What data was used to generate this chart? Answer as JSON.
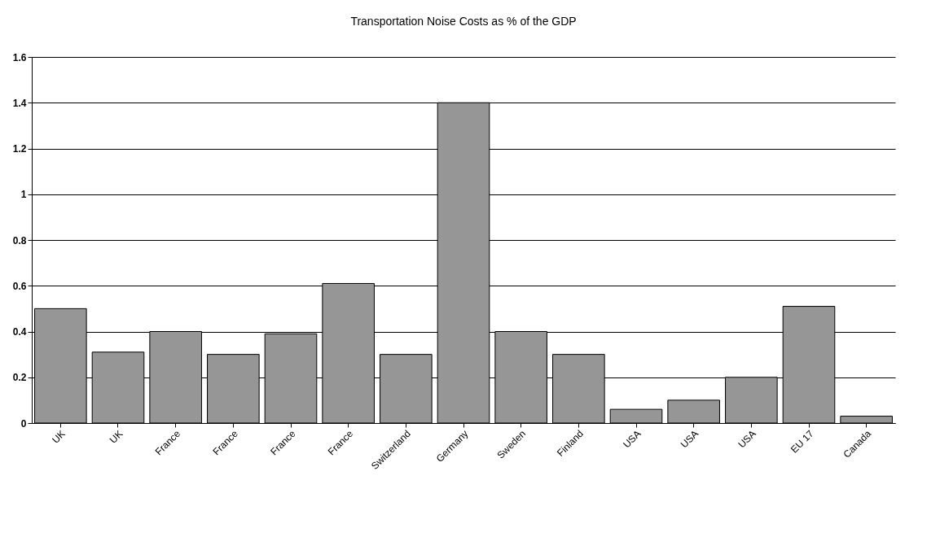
{
  "chart_data": {
    "type": "bar",
    "title": "Transportation Noise Costs as % of the GDP",
    "categories": [
      "UK",
      "UK",
      "France",
      "France",
      "France",
      "France",
      "Switzerland",
      "Germany",
      "Sweden",
      "Finland",
      "USA",
      "USA",
      "USA",
      "EU 17",
      "Canada"
    ],
    "values": [
      0.5,
      0.31,
      0.4,
      0.3,
      0.39,
      0.61,
      0.3,
      1.4,
      0.4,
      0.3,
      0.06,
      0.1,
      0.2,
      0.51,
      0.03
    ],
    "color": "#969696",
    "ylim": [
      0,
      1.6
    ],
    "yticks": [
      0,
      0.2,
      0.4,
      0.6,
      0.8,
      1,
      1.2,
      1.4,
      1.6
    ],
    "grid": "y"
  }
}
